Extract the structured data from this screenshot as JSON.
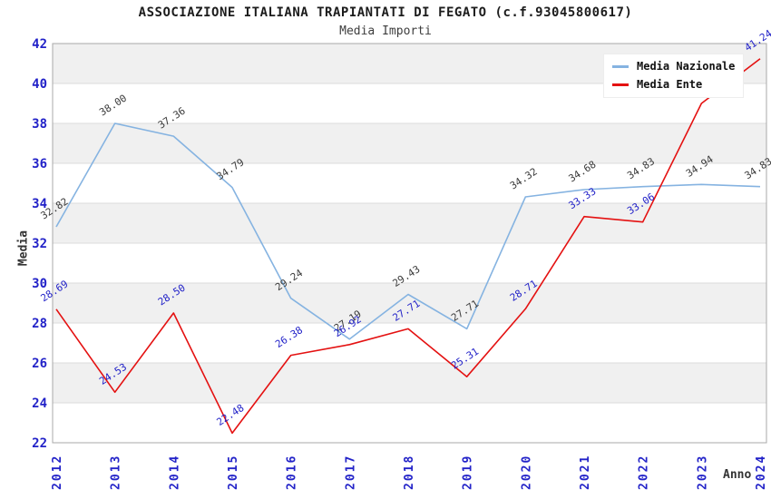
{
  "header": {
    "title": "ASSOCIAZIONE ITALIANA TRAPIANTATI DI FEGATO (c.f.93045800617)",
    "subtitle": "Media Importi"
  },
  "axes": {
    "y_title": "Media",
    "x_title": "Anno",
    "y_ticks": [
      22,
      24,
      26,
      28,
      30,
      32,
      34,
      36,
      38,
      40,
      42
    ],
    "x_ticks": [
      "2012",
      "2013",
      "2014",
      "2015",
      "2016",
      "2017",
      "2018",
      "2019",
      "2020",
      "2021",
      "2022",
      "2023",
      "2024"
    ]
  },
  "legend": {
    "position": "top-right",
    "items": [
      {
        "label": "Media Nazionale",
        "color": "#85b3e1"
      },
      {
        "label": "Media Ente",
        "color": "#e41111"
      }
    ]
  },
  "colors": {
    "axis_tick_labels": "#2222c8",
    "national_series_line": "#85b3e1",
    "national_point_labels": "#3a3a3a",
    "ente_series_line": "#e41111",
    "ente_point_labels": "#2222c8",
    "background_band": "#f0f0f0",
    "gridline": "#dbdbdb",
    "plot_frame": "#a8a8a8",
    "axis_titles": "#333333"
  },
  "chart_data": {
    "type": "line",
    "title": "ASSOCIAZIONE ITALIANA TRAPIANTATI DI FEGATO (c.f.93045800617)",
    "subtitle": "Media Importi",
    "xlabel": "Anno",
    "ylabel": "Media",
    "x": [
      "2012",
      "2013",
      "2014",
      "2015",
      "2016",
      "2017",
      "2018",
      "2019",
      "2020",
      "2021",
      "2022",
      "2023",
      "2024"
    ],
    "ylim": [
      22,
      42
    ],
    "ytick_step": 2,
    "grid": "horizontal-bands-alternating",
    "legend_position": "top-right",
    "series": [
      {
        "name": "Media Nazionale",
        "color": "#85b3e1",
        "label_color": "#3a3a3a",
        "values": [
          32.82,
          38.0,
          37.36,
          34.79,
          29.24,
          27.19,
          29.43,
          27.71,
          34.32,
          34.68,
          34.83,
          34.94,
          34.83
        ],
        "point_labels": [
          "32.82",
          "38.00",
          "37.36",
          "34.79",
          "29.24",
          "27.19",
          "29.43",
          "27.71",
          "34.32",
          "34.68",
          "34.83",
          "34.94",
          "34.83"
        ]
      },
      {
        "name": "Media Ente",
        "color": "#e41111",
        "label_color": "#2222c8",
        "values": [
          28.69,
          24.53,
          28.5,
          22.48,
          26.38,
          26.92,
          27.71,
          25.31,
          28.71,
          33.33,
          33.06,
          39.0,
          41.24
        ],
        "point_labels": [
          "28.69",
          "24.53",
          "28.50",
          "22.48",
          "26.38",
          "26.92",
          "27.71",
          "25.31",
          "28.71",
          "33.33",
          "33.06",
          "39.",
          "41.24"
        ]
      }
    ]
  }
}
